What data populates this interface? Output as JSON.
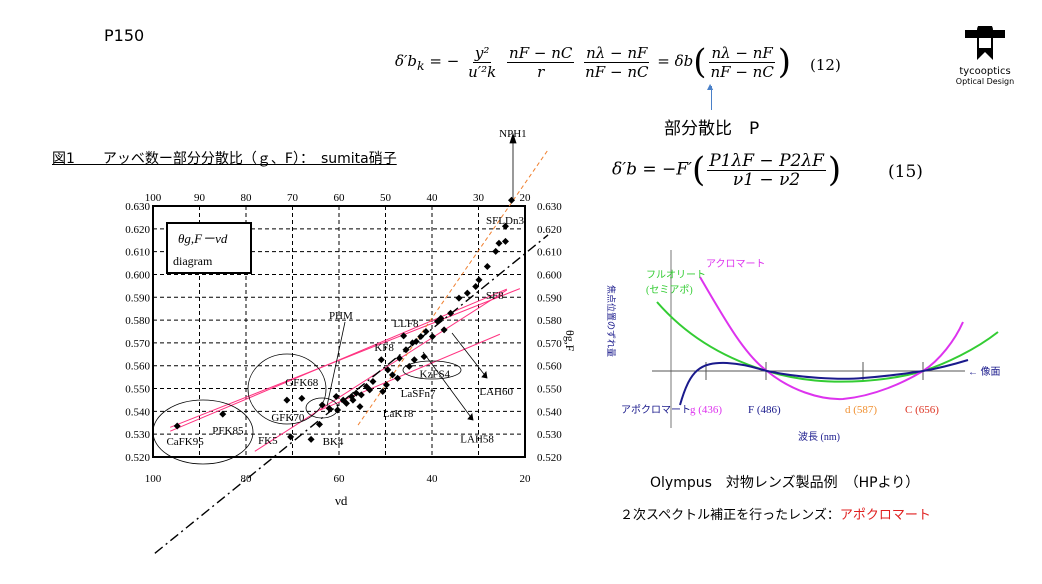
{
  "slide": {
    "page_label": "P150",
    "figure_title": "図1　　アッベ数ー部分分散比（ｇ、F）：　sumita硝子",
    "partial_dispersion_label": "部分散比　P",
    "logo": {
      "name": "tycooptics",
      "subtitle": "Optical Design"
    }
  },
  "equations": {
    "eq12": {
      "lhs": "δ′b",
      "lhs_sub": "k",
      "eq": "= −",
      "f1_num": "y²",
      "f1_den": "u′²k",
      "f2_num": "nF − nC",
      "f2_den": "r",
      "f3_num": "nλ − nF",
      "f3_den": "nF − nC",
      "eq2": "= δb",
      "f4_num": "nλ − nF",
      "f4_den": "nF − nC",
      "number": "(12)"
    },
    "eq15": {
      "lhs": "δ′b = −F′",
      "num": "P1λF − P2λF",
      "den": "ν1 − ν2",
      "number": "(15)"
    }
  },
  "chart_data": {
    "type": "scatter",
    "title": "θg,F－νd",
    "subtitle": "diagram",
    "xlabel": "νd",
    "ylabel": "θg,F",
    "xlim": [
      100,
      20
    ],
    "ylim": [
      0.52,
      0.63
    ],
    "x_ticks_top": [
      "100",
      "90",
      "80",
      "70",
      "60",
      "50",
      "40",
      "30",
      "20"
    ],
    "x_ticks_bottom": [
      "100",
      "80",
      "60",
      "40",
      "20"
    ],
    "y_ticks": [
      "0.630",
      "0.620",
      "0.610",
      "0.600",
      "0.590",
      "0.580",
      "0.570",
      "0.560",
      "0.550",
      "0.540",
      "0.530",
      "0.520"
    ],
    "grid": true,
    "points": [
      [
        94.8,
        0.5336
      ],
      [
        85.0,
        0.5388
      ],
      [
        71.2,
        0.5449
      ],
      [
        68.0,
        0.5457
      ],
      [
        70.4,
        0.5288
      ],
      [
        66.0,
        0.5277
      ],
      [
        64.2,
        0.5343
      ],
      [
        63.6,
        0.5428
      ],
      [
        62.1,
        0.5413
      ],
      [
        60.3,
        0.5406
      ],
      [
        60.6,
        0.5465
      ],
      [
        59.1,
        0.5449
      ],
      [
        58.4,
        0.5435
      ],
      [
        57.3,
        0.5465
      ],
      [
        57.0,
        0.5449
      ],
      [
        56.3,
        0.548
      ],
      [
        55.5,
        0.5421
      ],
      [
        55.2,
        0.5472
      ],
      [
        54.1,
        0.5509
      ],
      [
        53.4,
        0.5494
      ],
      [
        52.7,
        0.5531
      ],
      [
        50.9,
        0.5626
      ],
      [
        50.6,
        0.5487
      ],
      [
        49.8,
        0.5516
      ],
      [
        49.5,
        0.5582
      ],
      [
        48.5,
        0.556
      ],
      [
        47.4,
        0.5545
      ],
      [
        47.0,
        0.5633
      ],
      [
        46.1,
        0.5731
      ],
      [
        45.6,
        0.567
      ],
      [
        44.9,
        0.5597
      ],
      [
        44.2,
        0.57
      ],
      [
        43.8,
        0.5626
      ],
      [
        43.4,
        0.5706
      ],
      [
        42.4,
        0.5728
      ],
      [
        41.7,
        0.564
      ],
      [
        41.3,
        0.575
      ],
      [
        39.9,
        0.5728
      ],
      [
        38.8,
        0.5794
      ],
      [
        38.1,
        0.5808
      ],
      [
        37.4,
        0.5757
      ],
      [
        36.0,
        0.583
      ],
      [
        34.2,
        0.5896
      ],
      [
        32.4,
        0.5918
      ],
      [
        30.6,
        0.5947
      ],
      [
        29.9,
        0.5976
      ],
      [
        28.1,
        0.6035
      ],
      [
        26.3,
        0.6101
      ],
      [
        25.6,
        0.6137
      ],
      [
        24.2,
        0.6145
      ],
      [
        24.2,
        0.6211
      ],
      [
        22.9,
        0.6325
      ]
    ],
    "lines": [
      {
        "name": "normal-line-1",
        "color": "#ff3380",
        "from": [
          96.3,
          0.5313
        ],
        "to": [
          23.9,
          0.5936
        ]
      },
      {
        "name": "normal-line-2",
        "color": "#ff3380",
        "from": [
          96.3,
          0.533
        ],
        "to": [
          21.1,
          0.5938
        ]
      },
      {
        "name": "normal-line-3",
        "color": "#ff3380",
        "from": [
          78.1,
          0.5225
        ],
        "to": [
          23.9,
          0.5932
        ]
      },
      {
        "name": "normal-line-4",
        "color": "#ff3380",
        "from": [
          64.1,
          0.5405
        ],
        "to": [
          25.4,
          0.5738
        ]
      },
      {
        "name": "orange-dashed-line",
        "color": "#f08030",
        "dash": "4,3",
        "from": [
          55.9,
          0.534
        ],
        "to": [
          15.05,
          0.6546
        ]
      },
      {
        "name": "dash-dot-line",
        "color": "#000000",
        "dash": "10,4,2,4",
        "from": [
          99.6,
          0.4778
        ],
        "to": [
          15.05,
          0.6173
        ]
      }
    ],
    "annotations": [
      {
        "text": "SFLDn3",
        "x": 24.3,
        "y": 0.6239
      },
      {
        "text": "SF8",
        "x": 26.5,
        "y": 0.591
      },
      {
        "text": "PHM",
        "x": 59.6,
        "y": 0.5822
      },
      {
        "text": "LLF8",
        "x": 45.6,
        "y": 0.5787
      },
      {
        "text": "KF8",
        "x": 50.3,
        "y": 0.5682
      },
      {
        "text": "GFK68",
        "x": 68.0,
        "y": 0.5528
      },
      {
        "text": "KzFS4",
        "x": 39.4,
        "y": 0.5567
      },
      {
        "text": "LaSFn7",
        "x": 43.0,
        "y": 0.548
      },
      {
        "text": "LaK18",
        "x": 47.3,
        "y": 0.5392
      },
      {
        "text": "LAH60",
        "x": 26.2,
        "y": 0.5489
      },
      {
        "text": "LAH58",
        "x": 30.3,
        "y": 0.5282
      },
      {
        "text": "GFK70",
        "x": 71.0,
        "y": 0.5375
      },
      {
        "text": "PFK85",
        "x": 83.9,
        "y": 0.5318
      },
      {
        "text": "CaFK95",
        "x": 93.1,
        "y": 0.527
      },
      {
        "text": "FK5",
        "x": 75.3,
        "y": 0.5274
      },
      {
        "text": "BK4",
        "x": 61.3,
        "y": 0.527
      },
      {
        "text": "NPH1",
        "x": 22.6,
        "y": 0.662
      }
    ]
  },
  "focus_chart": {
    "y_axis_label": "焦点位置のずれ量",
    "x_axis_label": "波長 (nm)",
    "image_plane_label": "← 像面",
    "curves": [
      {
        "name": "アクロマート",
        "color": "#dd33ee"
      },
      {
        "name": "フルオリート",
        "name2": "(セミアポ)",
        "color": "#33cc33"
      },
      {
        "name": "アポクロマート",
        "color": "#1a1a8c"
      }
    ],
    "wavelengths": [
      {
        "label": "g (436)",
        "color": "#dd33ee"
      },
      {
        "label": "F (486)",
        "color": "#1a1a8c"
      },
      {
        "label": "d (587)",
        "color": "#f09030"
      },
      {
        "label": "C (656)",
        "color": "#dd3322"
      }
    ],
    "caption": "Olympus　対物レンズ製品例　（HPより）",
    "note_prefix": "２次スペクトル補正を行ったレンズ：",
    "note_highlight": "アポクロマート",
    "note_highlight_color": "#e02020"
  }
}
